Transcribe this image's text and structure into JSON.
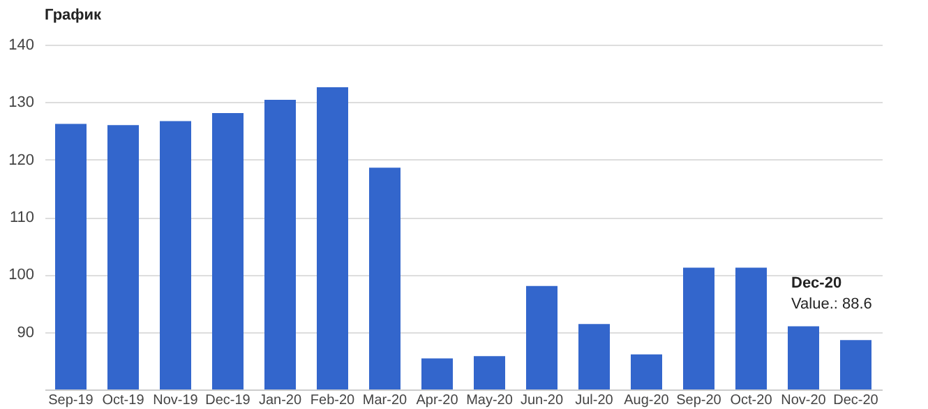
{
  "chart_data": {
    "type": "bar",
    "title": "График",
    "categories": [
      "Sep-19",
      "Oct-19",
      "Nov-19",
      "Dec-19",
      "Jan-20",
      "Feb-20",
      "Mar-20",
      "Apr-20",
      "May-20",
      "Jun-20",
      "Jul-20",
      "Aug-20",
      "Sep-20",
      "Oct-20",
      "Nov-20",
      "Dec-20"
    ],
    "values": [
      126.2,
      126.0,
      126.7,
      128.1,
      130.4,
      132.6,
      118.6,
      85.4,
      85.8,
      98.0,
      91.4,
      86.1,
      101.2,
      101.2,
      91.0,
      88.6
    ],
    "color": "#3366cc",
    "ylim": [
      80,
      140
    ],
    "yticks": [
      90,
      100,
      110,
      120,
      130,
      140
    ],
    "grid": "y",
    "annotations": [
      "Dec-20",
      "Value.: 88.6"
    ]
  }
}
